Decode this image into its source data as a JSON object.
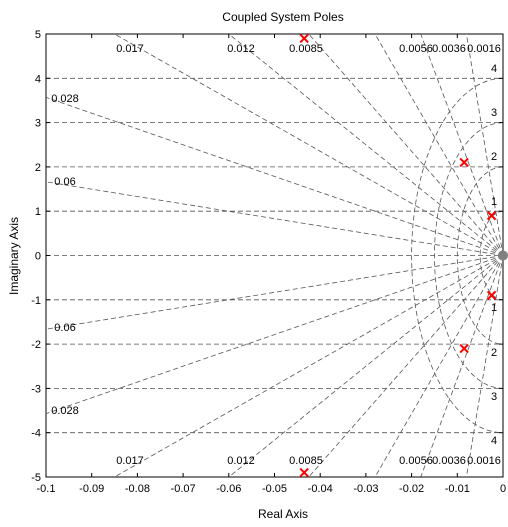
{
  "chart_data": {
    "type": "scatter",
    "title": "Coupled System Poles",
    "xlabel": "Real Axis",
    "ylabel": "Imaginary Axis",
    "xlim": [
      -0.1,
      0
    ],
    "ylim": [
      -5,
      5
    ],
    "x_ticks": [
      "-0.1",
      "-0.09",
      "-0.08",
      "-0.07",
      "-0.06",
      "-0.05",
      "-0.04",
      "-0.03",
      "-0.02",
      "-0.01",
      "0"
    ],
    "y_ticks": [
      "5",
      "4",
      "3",
      "2",
      "1",
      "0",
      "-1",
      "-2",
      "-3",
      "-4",
      "-5"
    ],
    "series": [
      {
        "marker": "x",
        "color": "#ff0000",
        "x": [
          -0.0435,
          -0.0085,
          -0.0025,
          -0.0025,
          -0.0085,
          -0.0435
        ],
        "y": [
          4.9,
          2.1,
          0.9,
          -0.9,
          -2.1,
          -4.9
        ]
      }
    ],
    "damping_grid": {
      "values": [
        0.0016,
        0.0036,
        0.0056,
        0.0085,
        0.012,
        0.017,
        0.028,
        0.06
      ],
      "labels": [
        "0.0016",
        "0.0036",
        "0.0056",
        "0.0085",
        "0.012",
        "0.017",
        "0.028",
        "0.06"
      ]
    },
    "frequency_grid": {
      "values": [
        1,
        2,
        3,
        4
      ],
      "labels": [
        "1",
        "2",
        "3",
        "4"
      ]
    },
    "grid_color": "#555555",
    "zero_marker_color": "#808080"
  }
}
